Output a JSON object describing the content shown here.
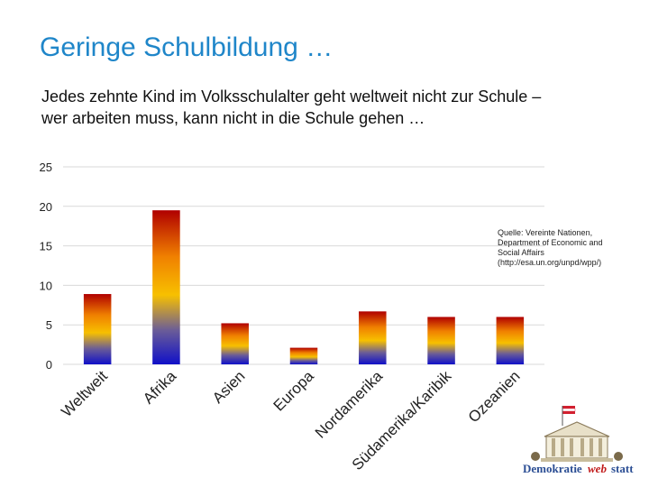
{
  "slide": {
    "title": "Geringe Schulbildung …",
    "subtitle_line1": "Jedes zehnte Kind im Volksschulalter geht weltweit nicht zur Schule –",
    "subtitle_line2": "wer arbeiten muss, kann nicht in die Schule gehen …",
    "source_lines": [
      "Quelle: Vereinte Nationen,",
      "Department of Economic and",
      "Social Affairs",
      "(http://esa.un.org/unpd/wpp/)"
    ]
  },
  "chart_data": {
    "type": "bar",
    "categories": [
      "Weltweit",
      "Afrika",
      "Asien",
      "Europa",
      "Nordamerika",
      "Südamerika/Karibik",
      "Ozeanien"
    ],
    "values": [
      8.9,
      19.5,
      5.2,
      2.1,
      6.7,
      6.0,
      6.0
    ],
    "ylim": [
      0,
      25
    ],
    "yticks": [
      0,
      5,
      10,
      15,
      20,
      25
    ],
    "title": "",
    "xlabel": "",
    "ylabel": "",
    "grid": true,
    "bar_gradient": [
      "#b00000",
      "#f08000",
      "#f7c000",
      "#6a5c98",
      "#1010c8"
    ]
  },
  "logo": {
    "text_left": "Demokratie",
    "text_mid": "web",
    "text_right": "statt",
    "colors": {
      "left": "#2b4e94",
      "mid": "#c01818",
      "right": "#2b4e94"
    }
  }
}
